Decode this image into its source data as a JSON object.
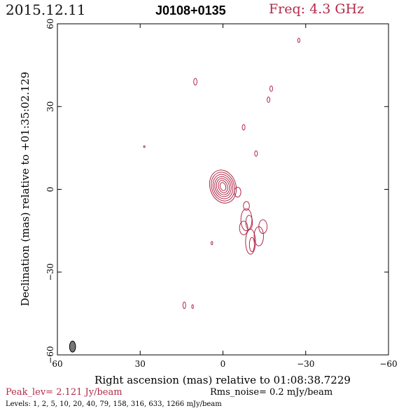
{
  "header": {
    "date": "2015.12.11",
    "source": "J0108+0135",
    "freq": "Freq: 4.3 GHz"
  },
  "footer": {
    "peak": "Peak_lev=  2.121 Jy/beam",
    "rms": "Rms_noise=  0.2 mJy/beam",
    "levels": "Levels:   1,   2,   5,  10,  20,  40,  79, 158, 316, 633, 1266 mJy/beam"
  },
  "colors": {
    "contour": "#b02a4a",
    "beam": "#777777",
    "axes": "#000000"
  },
  "chart_data": {
    "type": "contour",
    "xlabel": "Right ascension (mas) relative to 01:08:38.7229",
    "ylabel": "Declination (mas) relative to +01:35:02.129",
    "xlim": [
      60,
      -60
    ],
    "ylim": [
      -60,
      60
    ],
    "xticks": [
      60,
      30,
      0,
      -30,
      -60
    ],
    "yticks": [
      -60,
      -30,
      0,
      30,
      60
    ],
    "xtick_labels": [
      "60",
      "30",
      "0",
      "−30",
      "−60"
    ],
    "ytick_labels": [
      "−60",
      "−30",
      "0",
      "30",
      "60"
    ],
    "beam": {
      "x": 54.5,
      "y": -57,
      "rx": 1.0,
      "ry": 2.0
    },
    "core": {
      "x": 0,
      "y": 1,
      "rings": [
        {
          "rx": 1.0,
          "ry": 1.5
        },
        {
          "rx": 1.6,
          "ry": 2.3
        },
        {
          "rx": 2.3,
          "ry": 3.0
        },
        {
          "rx": 2.9,
          "ry": 3.7
        },
        {
          "rx": 3.5,
          "ry": 4.5
        },
        {
          "rx": 4.1,
          "ry": 5.3
        },
        {
          "rx": 4.7,
          "ry": 6.1
        }
      ]
    },
    "jet_blobs": [
      {
        "x": -8.5,
        "y": -11,
        "rx": 2.0,
        "ry": 4.0
      },
      {
        "x": -9.5,
        "y": -12,
        "rx": 1.2,
        "ry": 2.6
      },
      {
        "x": -10,
        "y": -19,
        "rx": 1.8,
        "ry": 4.5
      },
      {
        "x": -10.5,
        "y": -20,
        "rx": 0.9,
        "ry": 2.6
      },
      {
        "x": -13,
        "y": -17,
        "rx": 1.7,
        "ry": 3.5
      },
      {
        "x": -14.5,
        "y": -13.5,
        "rx": 1.5,
        "ry": 2.5
      },
      {
        "x": -7.5,
        "y": -14,
        "rx": 1.5,
        "ry": 2.5
      },
      {
        "x": -8.5,
        "y": -6,
        "rx": 1.1,
        "ry": 1.6
      },
      {
        "x": -5.3,
        "y": -1,
        "rx": 1.2,
        "ry": 1.8
      }
    ],
    "isolated": [
      {
        "x": -27.5,
        "y": 54,
        "rx": 0.4,
        "ry": 0.8
      },
      {
        "x": 10,
        "y": 39,
        "rx": 0.6,
        "ry": 1.2
      },
      {
        "x": -17.5,
        "y": 36.5,
        "rx": 0.5,
        "ry": 1.0
      },
      {
        "x": -16.5,
        "y": 32.5,
        "rx": 0.5,
        "ry": 1.0
      },
      {
        "x": -7.5,
        "y": 22.5,
        "rx": 0.5,
        "ry": 1.0
      },
      {
        "x": -12,
        "y": 13,
        "rx": 0.5,
        "ry": 1.0
      },
      {
        "x": 28.5,
        "y": 15.5,
        "rx": 0.3,
        "ry": 0.3
      },
      {
        "x": 4,
        "y": -19.5,
        "rx": 0.3,
        "ry": 0.6
      },
      {
        "x": 14,
        "y": -42,
        "rx": 0.5,
        "ry": 1.2
      },
      {
        "x": 11,
        "y": -42.5,
        "rx": 0.3,
        "ry": 0.7
      }
    ]
  }
}
